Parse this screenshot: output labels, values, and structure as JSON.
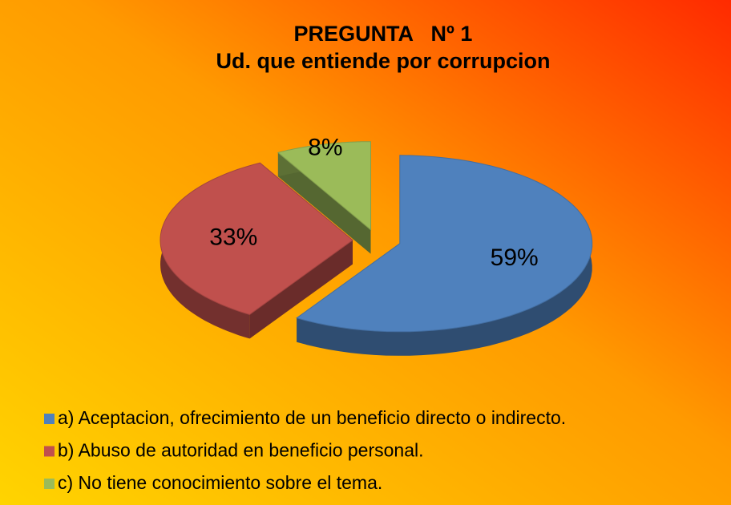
{
  "chart_data": {
    "type": "pie",
    "title": "PREGUNTA   Nº 1",
    "subtitle": "Ud. que entiende por corrupcion",
    "categories": [
      "a) Aceptacion, ofrecimiento de un beneficio directo o indirecto.",
      "b) Abuso de autoridad en beneficio personal.",
      "c) No tiene conocimiento sobre el tema."
    ],
    "values": [
      59,
      33,
      8
    ],
    "value_labels": [
      "59%",
      "33%",
      "8%"
    ],
    "colors": [
      "#4f81bd",
      "#c0504d",
      "#9bbb59"
    ],
    "legend": "bottom"
  }
}
